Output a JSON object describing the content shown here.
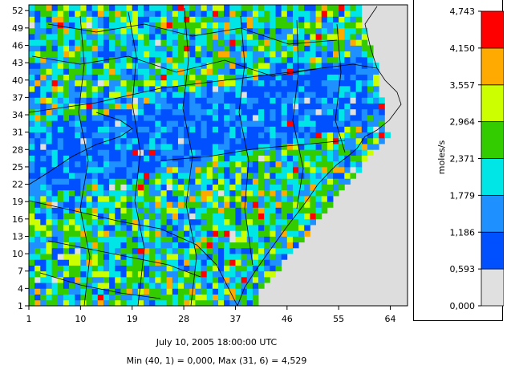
{
  "caption": {
    "time": "July 10, 2005 18:00:00 UTC",
    "stats": "Min (40, 1) = 0,000, Max (31, 6) = 4,529"
  },
  "chart_data": {
    "type": "heatmap",
    "title": "",
    "x_ticks": [
      "1",
      "10",
      "19",
      "28",
      "37",
      "46",
      "55",
      "64"
    ],
    "y_ticks": [
      "1",
      "4",
      "7",
      "10",
      "13",
      "16",
      "19",
      "22",
      "25",
      "28",
      "31",
      "34",
      "37",
      "40",
      "43",
      "46",
      "49",
      "52"
    ],
    "x_range": [
      1,
      67
    ],
    "y_range": [
      1,
      53
    ],
    "color_unit": "moles/s",
    "color_levels": [
      "0,000",
      "0,593",
      "1,186",
      "1,779",
      "2,371",
      "2,964",
      "3,557",
      "4,150",
      "4,743"
    ],
    "color_scale": [
      "#e0e0e0",
      "#0050ff",
      "#1e90ff",
      "#00e6e6",
      "#33cc00",
      "#ccff00",
      "#ffaa00",
      "#ff0000"
    ],
    "land_background": "#dddddd",
    "grid": false
  }
}
